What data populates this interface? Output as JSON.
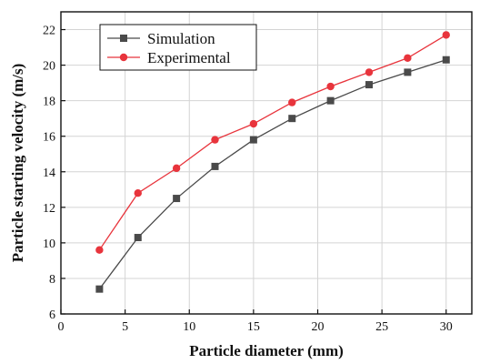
{
  "chart_data": {
    "type": "line",
    "xlabel": "Particle diameter (mm)",
    "ylabel": "Particle starting velocity (m/s)",
    "xlim": [
      0,
      32
    ],
    "ylim": [
      6,
      23
    ],
    "xticks": [
      0,
      5,
      10,
      15,
      20,
      25,
      30
    ],
    "yticks": [
      6,
      8,
      10,
      12,
      14,
      16,
      18,
      20,
      22
    ],
    "grid": true,
    "legend_position": "top-left",
    "x": [
      3,
      6,
      9,
      12,
      15,
      18,
      21,
      24,
      27,
      30
    ],
    "series": [
      {
        "name": "Simulation",
        "color": "#4a4a4a",
        "marker": "square",
        "values": [
          7.4,
          10.3,
          12.5,
          14.3,
          15.8,
          17.0,
          18.0,
          18.9,
          19.6,
          20.3
        ]
      },
      {
        "name": "Experimental",
        "color": "#e8343c",
        "marker": "circle",
        "values": [
          9.6,
          12.8,
          14.2,
          15.8,
          16.7,
          17.9,
          18.8,
          19.6,
          20.4,
          21.7
        ]
      }
    ]
  }
}
